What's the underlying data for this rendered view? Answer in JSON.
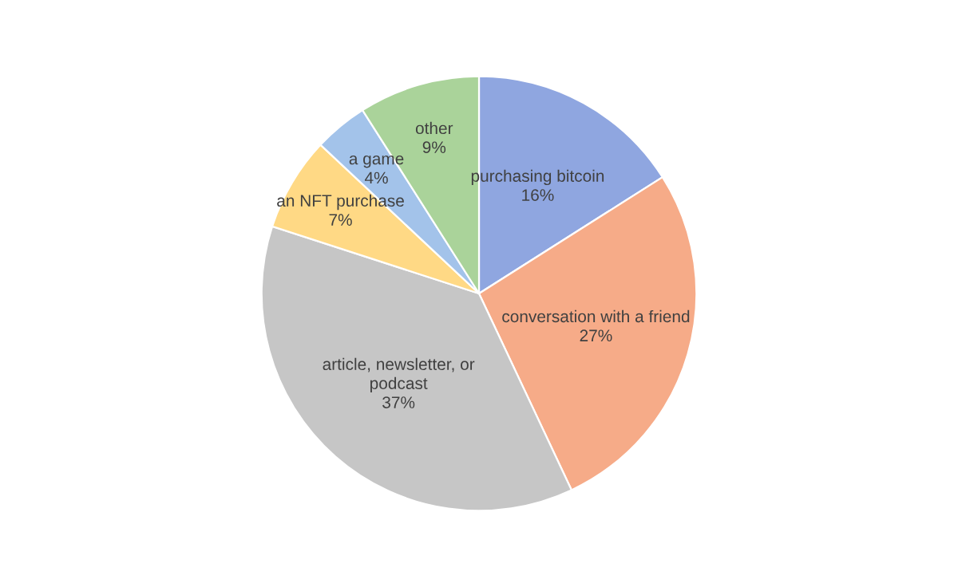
{
  "chart_data": {
    "type": "pie",
    "categories": [
      "purchasing bitcoin",
      "conversation with a friend",
      "article, newsletter, or podcast",
      "an NFT purchase",
      "a game",
      "other"
    ],
    "values": [
      16,
      27,
      37,
      7,
      4,
      9
    ],
    "colors": [
      "#8fa6e0",
      "#f6ab88",
      "#c6c6c6",
      "#ffd985",
      "#a3c3ea",
      "#aad39a"
    ],
    "value_labels": [
      "16%",
      "27%",
      "37%",
      "7%",
      "4%",
      "9%"
    ],
    "legend": false
  }
}
